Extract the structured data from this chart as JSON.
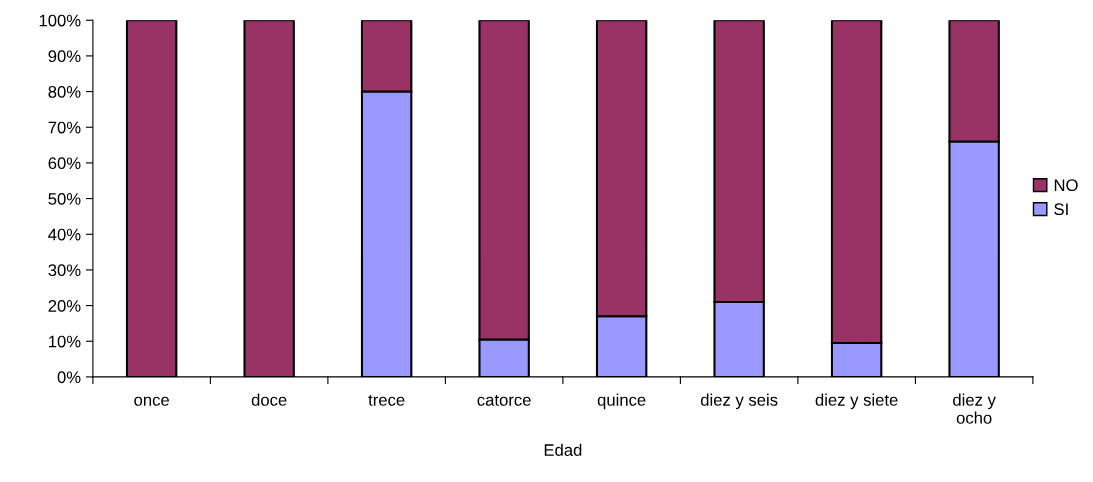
{
  "chart_data": {
    "type": "bar",
    "stacked": true,
    "xlabel": "Edad",
    "categories": [
      "once",
      "doce",
      "trece",
      "catorce",
      "quince",
      "diez y seis",
      "diez y siete",
      "diez y\nocho"
    ],
    "series": [
      {
        "name": "SI",
        "color": "#9999ff",
        "values": [
          0,
          0,
          80,
          10.5,
          17,
          21,
          9.5,
          66
        ]
      },
      {
        "name": "NO",
        "color": "#993366",
        "values": [
          100,
          100,
          20,
          89.5,
          83,
          79,
          90.5,
          34
        ]
      }
    ],
    "ylim": [
      0,
      100
    ],
    "yticks": [
      {
        "value": 0,
        "label": "0%"
      },
      {
        "value": 10,
        "label": "10%"
      },
      {
        "value": 20,
        "label": "20%"
      },
      {
        "value": 30,
        "label": "30%"
      },
      {
        "value": 40,
        "label": "40%"
      },
      {
        "value": 50,
        "label": "50%"
      },
      {
        "value": 60,
        "label": "60%"
      },
      {
        "value": 70,
        "label": "70%"
      },
      {
        "value": 80,
        "label": "80%"
      },
      {
        "value": 90,
        "label": "90%"
      },
      {
        "value": 100,
        "label": "100%"
      }
    ],
    "grid": false,
    "legend": "right"
  }
}
